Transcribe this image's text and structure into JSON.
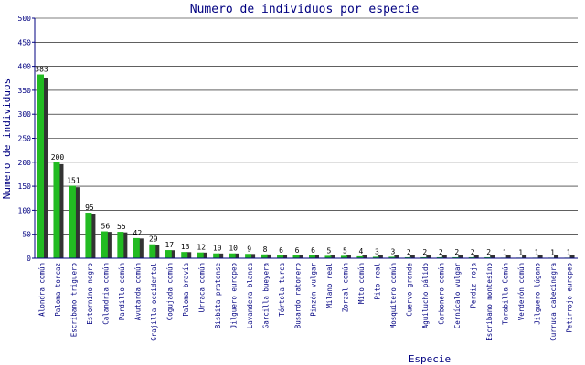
{
  "chart_data": {
    "type": "bar",
    "title": "Numero de individuos por especie",
    "xlabel": "Especie",
    "ylabel": "Numero de individuos",
    "ylim": [
      0,
      500
    ],
    "yticks": [
      0,
      50,
      100,
      150,
      200,
      250,
      300,
      350,
      400,
      450,
      500
    ],
    "grid": true,
    "legend": "none",
    "colors": {
      "bar": "#22bb22",
      "shadow": "#333333",
      "axis": "#000080",
      "grid": "#000000"
    },
    "categories": [
      "Alondra común",
      "Paloma torcaz",
      "Escribano triguero",
      "Estornino negro",
      "Calandria común",
      "Pardillo común",
      "Avutarda común",
      "Grajilla occidental",
      "Cogujada común",
      "Paloma bravía",
      "Urraca común",
      "Bisbita pratense",
      "Jilguero europeo",
      "Lavandera blanca",
      "Garcilla bueyera",
      "Tórtola turca",
      "Busardo ratonero",
      "Pinzón vulgar",
      "Milano real",
      "Zorzal común",
      "Mito común",
      "Pito real",
      "Mosquitero común",
      "Cuervo grande",
      "Aguilucho pálido",
      "Carbonero común",
      "Cernícalo vulgar",
      "Perdiz roja",
      "Escribano montesino",
      "Tarabilla Común",
      "Verderón común",
      "Jilguero lúgano",
      "Curruca cabecinegra",
      "Petirrojo europeo"
    ],
    "values": [
      383,
      200,
      151,
      95,
      56,
      55,
      42,
      29,
      17,
      13,
      12,
      10,
      10,
      9,
      8,
      6,
      6,
      6,
      5,
      5,
      4,
      3,
      3,
      2,
      2,
      2,
      2,
      2,
      2,
      1,
      1,
      1,
      1,
      1
    ]
  }
}
